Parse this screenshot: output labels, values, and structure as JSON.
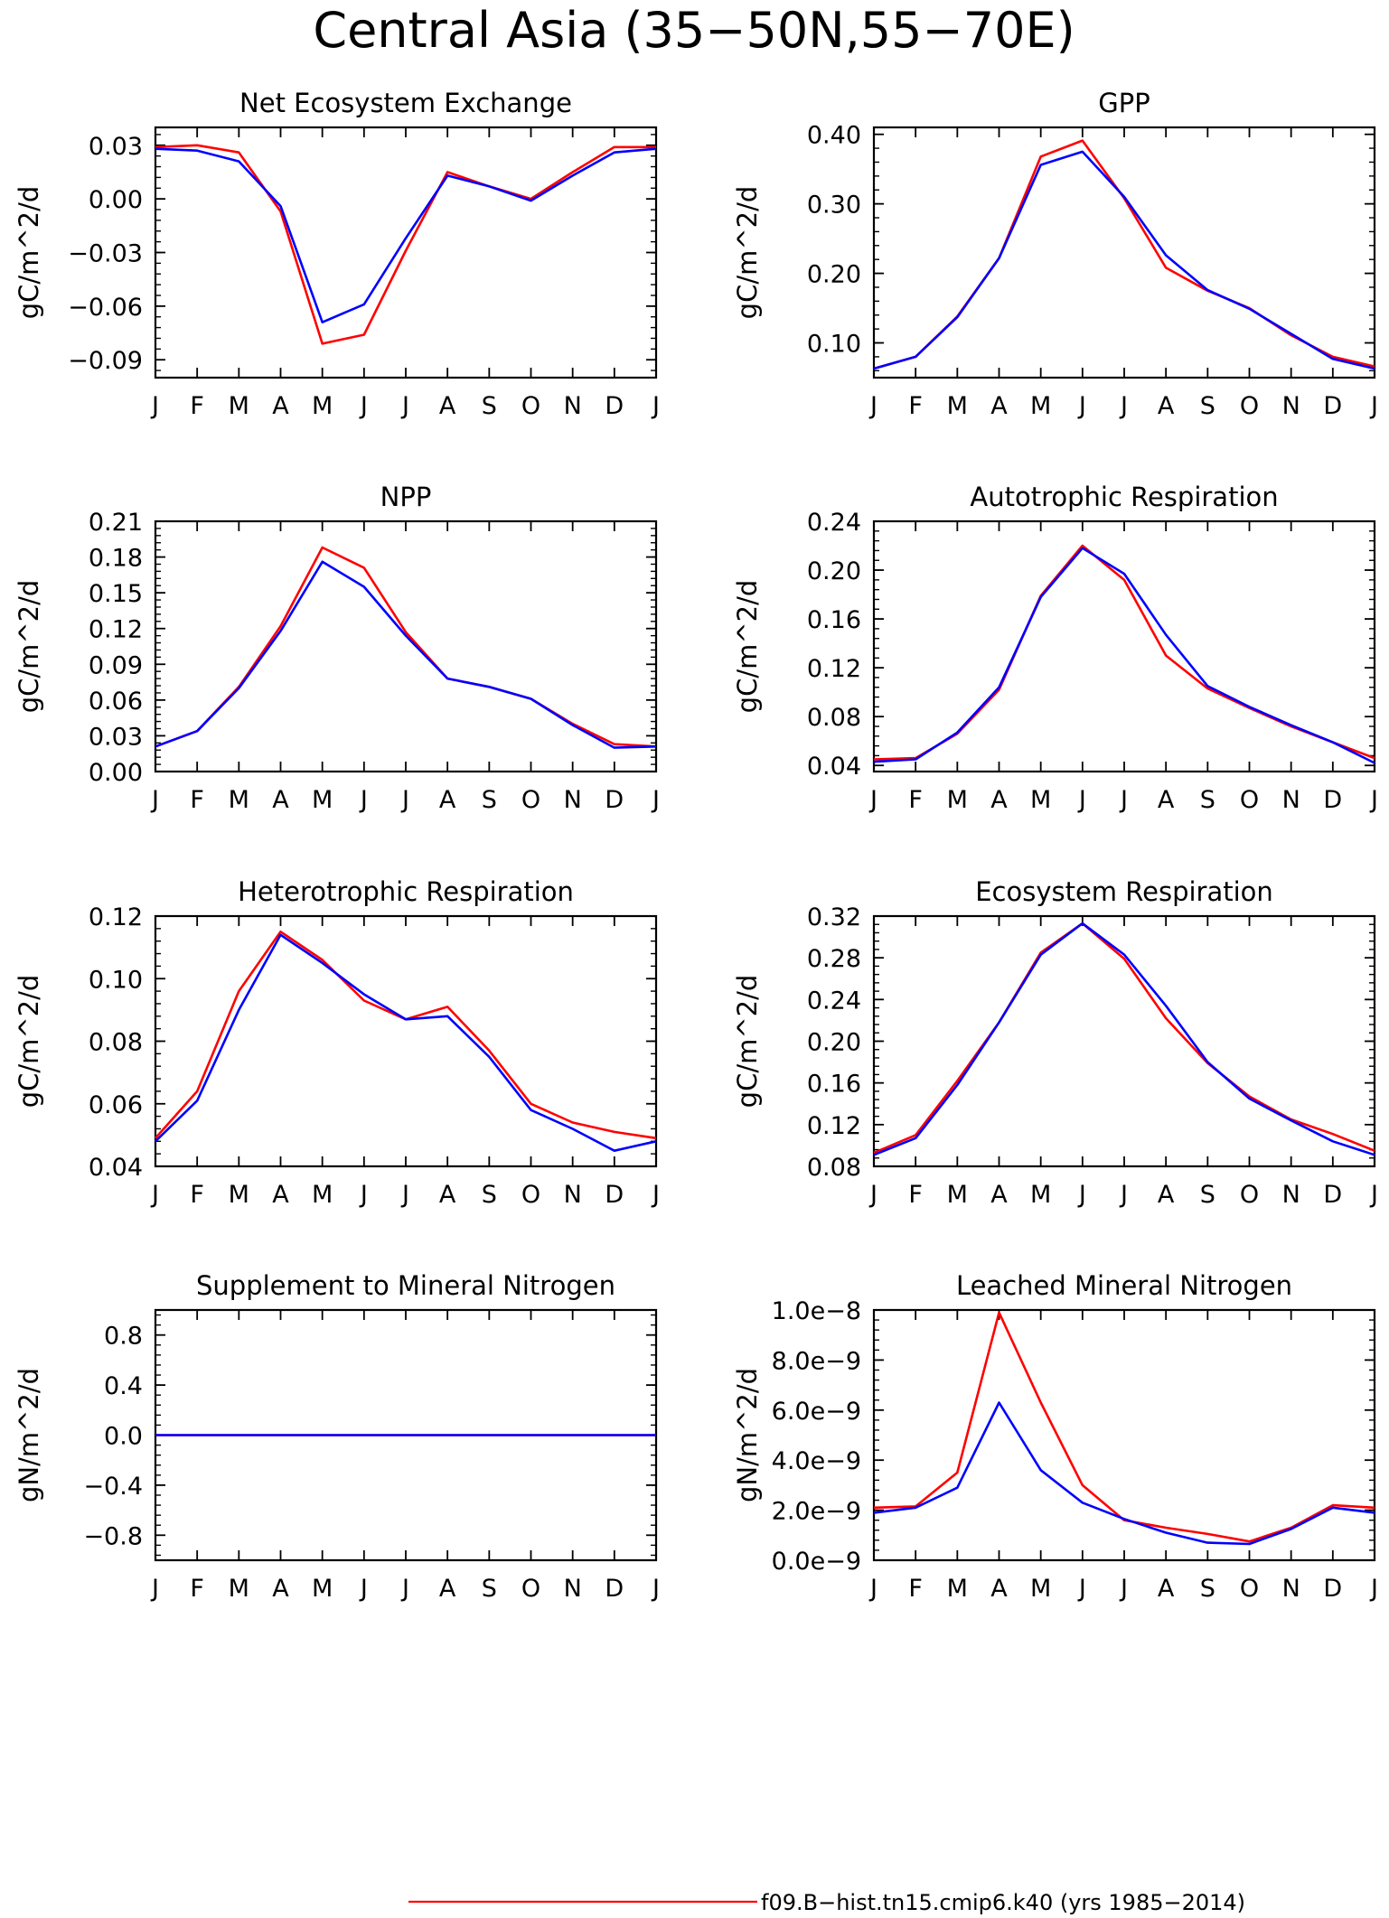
{
  "title": "Central Asia (35−50N,55−70E)",
  "colors": {
    "red": "#ff0000",
    "blue": "#0000ff"
  },
  "legend": [
    {
      "label": "f09.B−hist.tn15.cmip6.k40 (yrs 1985−2014)",
      "color": "#ff0000"
    }
  ],
  "chart_data": [
    {
      "type": "line",
      "title": "Net Ecosystem Exchange",
      "ylabel": "gC/m^2/d",
      "categories": [
        "J",
        "F",
        "M",
        "A",
        "M",
        "J",
        "J",
        "A",
        "S",
        "O",
        "N",
        "D",
        "J"
      ],
      "ylim": [
        -0.1,
        0.04
      ],
      "yticks": [
        -0.09,
        -0.06,
        -0.03,
        0.0,
        0.03
      ],
      "ytick_labels": [
        "−0.09",
        "−0.06",
        "−0.03",
        "0.00",
        "0.03"
      ],
      "series": [
        {
          "color": "#ff0000",
          "values": [
            0.029,
            0.03,
            0.026,
            -0.007,
            -0.081,
            -0.076,
            -0.029,
            0.015,
            0.007,
            0.0,
            0.015,
            0.029,
            0.029
          ]
        },
        {
          "color": "#0000ff",
          "values": [
            0.028,
            0.027,
            0.021,
            -0.004,
            -0.069,
            -0.059,
            -0.022,
            0.013,
            0.007,
            -0.001,
            0.013,
            0.026,
            0.028
          ]
        }
      ]
    },
    {
      "type": "line",
      "title": "GPP",
      "ylabel": "gC/m^2/d",
      "categories": [
        "J",
        "F",
        "M",
        "A",
        "M",
        "J",
        "J",
        "A",
        "S",
        "O",
        "N",
        "D",
        "J"
      ],
      "ylim": [
        0.05,
        0.41
      ],
      "yticks": [
        0.1,
        0.2,
        0.3,
        0.4
      ],
      "ytick_labels": [
        "0.10",
        "0.20",
        "0.30",
        "0.40"
      ],
      "series": [
        {
          "color": "#ff0000",
          "values": [
            0.063,
            0.08,
            0.138,
            0.222,
            0.368,
            0.391,
            0.308,
            0.208,
            0.175,
            0.15,
            0.111,
            0.08,
            0.066
          ]
        },
        {
          "color": "#0000ff",
          "values": [
            0.063,
            0.08,
            0.137,
            0.222,
            0.356,
            0.375,
            0.31,
            0.226,
            0.176,
            0.149,
            0.113,
            0.077,
            0.063
          ]
        }
      ]
    },
    {
      "type": "line",
      "title": "NPP",
      "ylabel": "gC/m^2/d",
      "categories": [
        "J",
        "F",
        "M",
        "A",
        "M",
        "J",
        "J",
        "A",
        "S",
        "O",
        "N",
        "D",
        "J"
      ],
      "ylim": [
        0.0,
        0.21
      ],
      "yticks": [
        0.0,
        0.03,
        0.06,
        0.09,
        0.12,
        0.15,
        0.18,
        0.21
      ],
      "ytick_labels": [
        "0.00",
        "0.03",
        "0.06",
        "0.09",
        "0.12",
        "0.15",
        "0.18",
        "0.21"
      ],
      "series": [
        {
          "color": "#ff0000",
          "values": [
            0.021,
            0.034,
            0.071,
            0.122,
            0.188,
            0.171,
            0.117,
            0.078,
            0.071,
            0.061,
            0.04,
            0.023,
            0.021
          ]
        },
        {
          "color": "#0000ff",
          "values": [
            0.021,
            0.034,
            0.07,
            0.118,
            0.176,
            0.155,
            0.114,
            0.078,
            0.071,
            0.061,
            0.039,
            0.02,
            0.021
          ]
        }
      ]
    },
    {
      "type": "line",
      "title": "Autotrophic Respiration",
      "ylabel": "gC/m^2/d",
      "categories": [
        "J",
        "F",
        "M",
        "A",
        "M",
        "J",
        "J",
        "A",
        "S",
        "O",
        "N",
        "D",
        "J"
      ],
      "ylim": [
        0.035,
        0.24
      ],
      "yticks": [
        0.04,
        0.08,
        0.12,
        0.16,
        0.2,
        0.24
      ],
      "ytick_labels": [
        "0.04",
        "0.08",
        "0.12",
        "0.16",
        "0.20",
        "0.24"
      ],
      "series": [
        {
          "color": "#ff0000",
          "values": [
            0.045,
            0.046,
            0.066,
            0.102,
            0.179,
            0.22,
            0.192,
            0.13,
            0.103,
            0.087,
            0.072,
            0.059,
            0.046
          ]
        },
        {
          "color": "#0000ff",
          "values": [
            0.043,
            0.045,
            0.067,
            0.104,
            0.178,
            0.218,
            0.197,
            0.147,
            0.105,
            0.088,
            0.073,
            0.059,
            0.042
          ]
        }
      ]
    },
    {
      "type": "line",
      "title": "Heterotrophic Respiration",
      "ylabel": "gC/m^2/d",
      "categories": [
        "J",
        "F",
        "M",
        "A",
        "M",
        "J",
        "J",
        "A",
        "S",
        "O",
        "N",
        "D",
        "J"
      ],
      "ylim": [
        0.04,
        0.12
      ],
      "yticks": [
        0.04,
        0.06,
        0.08,
        0.1,
        0.12
      ],
      "ytick_labels": [
        "0.04",
        "0.06",
        "0.08",
        "0.10",
        "0.12"
      ],
      "series": [
        {
          "color": "#ff0000",
          "values": [
            0.049,
            0.064,
            0.096,
            0.115,
            0.106,
            0.093,
            0.087,
            0.091,
            0.077,
            0.06,
            0.054,
            0.051,
            0.049
          ]
        },
        {
          "color": "#0000ff",
          "values": [
            0.048,
            0.061,
            0.09,
            0.114,
            0.105,
            0.095,
            0.087,
            0.088,
            0.075,
            0.058,
            0.052,
            0.045,
            0.048
          ]
        }
      ]
    },
    {
      "type": "line",
      "title": "Ecosystem Respiration",
      "ylabel": "gC/m^2/d",
      "categories": [
        "J",
        "F",
        "M",
        "A",
        "M",
        "J",
        "J",
        "A",
        "S",
        "O",
        "N",
        "D",
        "J"
      ],
      "ylim": [
        0.08,
        0.32
      ],
      "yticks": [
        0.08,
        0.12,
        0.16,
        0.2,
        0.24,
        0.28,
        0.32
      ],
      "ytick_labels": [
        "0.08",
        "0.12",
        "0.16",
        "0.20",
        "0.24",
        "0.28",
        "0.32"
      ],
      "series": [
        {
          "color": "#ff0000",
          "values": [
            0.093,
            0.11,
            0.162,
            0.218,
            0.285,
            0.313,
            0.279,
            0.222,
            0.179,
            0.147,
            0.125,
            0.111,
            0.095
          ]
        },
        {
          "color": "#0000ff",
          "values": [
            0.091,
            0.107,
            0.158,
            0.218,
            0.283,
            0.313,
            0.283,
            0.234,
            0.18,
            0.145,
            0.124,
            0.104,
            0.091
          ]
        }
      ]
    },
    {
      "type": "line",
      "title": "Supplement to Mineral Nitrogen",
      "ylabel": "gN/m^2/d",
      "categories": [
        "J",
        "F",
        "M",
        "A",
        "M",
        "J",
        "J",
        "A",
        "S",
        "O",
        "N",
        "D",
        "J"
      ],
      "ylim": [
        -1.0,
        1.0
      ],
      "yticks": [
        -0.8,
        -0.4,
        0.0,
        0.4,
        0.8
      ],
      "ytick_labels": [
        "−0.8",
        "−0.4",
        "0.0",
        "0.4",
        "0.8"
      ],
      "series": [
        {
          "color": "#ff0000",
          "values": [
            0,
            0,
            0,
            0,
            0,
            0,
            0,
            0,
            0,
            0,
            0,
            0,
            0
          ]
        },
        {
          "color": "#0000ff",
          "values": [
            0,
            0,
            0,
            0,
            0,
            0,
            0,
            0,
            0,
            0,
            0,
            0,
            0
          ]
        }
      ]
    },
    {
      "type": "line",
      "title": "Leached Mineral Nitrogen",
      "ylabel": "gN/m^2/d",
      "categories": [
        "J",
        "F",
        "M",
        "A",
        "M",
        "J",
        "J",
        "A",
        "S",
        "O",
        "N",
        "D",
        "J"
      ],
      "ylim": [
        0.0,
        1e-08
      ],
      "yticks": [
        0.0,
        2e-09,
        4e-09,
        6e-09,
        8e-09,
        1e-08
      ],
      "ytick_labels": [
        "0.0e−9",
        "2.0e−9",
        "4.0e−9",
        "6.0e−9",
        "8.0e−9",
        "1.0e−8"
      ],
      "series": [
        {
          "color": "#ff0000",
          "values": [
            2.1e-09,
            2.15e-09,
            3.5e-09,
            9.9e-09,
            6.3e-09,
            3e-09,
            1.6e-09,
            1.3e-09,
            1.05e-09,
            7.5e-10,
            1.3e-09,
            2.2e-09,
            2.1e-09
          ]
        },
        {
          "color": "#0000ff",
          "values": [
            1.9e-09,
            2.1e-09,
            2.9e-09,
            6.3e-09,
            3.6e-09,
            2.3e-09,
            1.65e-09,
            1.1e-09,
            7e-10,
            6.5e-10,
            1.25e-09,
            2.1e-09,
            1.9e-09
          ]
        }
      ]
    }
  ]
}
